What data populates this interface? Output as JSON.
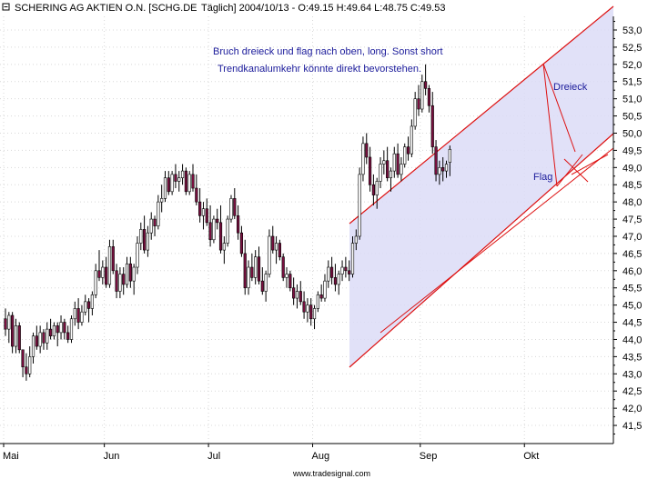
{
  "header": {
    "title": "SCHERING AG AKTIEN O.N. [SCHG.DE",
    "info": "Täglich] 2004/10/13 - O:49.15 H:49.64 L:48.75 C:49.53"
  },
  "footer": {
    "source": "www.tradesignal.com"
  },
  "colors": {
    "up": "#ffffff",
    "down": "#7a1040",
    "wick": "#000000",
    "channel_fill": "#dcdcf7",
    "channel_line": "#dd1111",
    "annotation": "#1a1a9a",
    "grid": "#d8d8d8"
  },
  "annotations": {
    "note1": "Bruch dreieck und flag nach oben, long. Sonst short",
    "note2": "Trendkanalumkehr könnte direkt bevorstehen.",
    "triangle": "Dreieck",
    "flag": "Flag"
  },
  "chart_data": {
    "type": "candlestick",
    "title": "SCHERING AG AKTIEN O.N. [SCHG.DE Täglich]",
    "ylim": [
      41.0,
      53.5
    ],
    "y_ticks": [
      "53,0",
      "52,5",
      "52,0",
      "51,5",
      "51,0",
      "50,5",
      "50,0",
      "49,5",
      "49,0",
      "48,5",
      "48,0",
      "47,5",
      "47,0",
      "46,5",
      "46,0",
      "45,5",
      "45,0",
      "44,5",
      "44,0",
      "43,5",
      "43,0",
      "42,5",
      "42,0",
      "41,5"
    ],
    "y_tick_values": [
      53.0,
      52.5,
      52.0,
      51.5,
      51.0,
      50.5,
      50.0,
      49.5,
      49.0,
      48.5,
      48.0,
      47.5,
      47.0,
      46.5,
      46.0,
      45.5,
      45.0,
      44.5,
      44.0,
      43.5,
      43.0,
      42.5,
      42.0,
      41.5
    ],
    "months": [
      {
        "label": "Mai",
        "index": 0
      },
      {
        "label": "Jun",
        "index": 29
      },
      {
        "label": "Jul",
        "index": 59
      },
      {
        "label": "Aug",
        "index": 89
      },
      {
        "label": "Sep",
        "index": 120
      },
      {
        "label": "Okt",
        "index": 150
      }
    ],
    "last_bar": {
      "date": "2004/10/13",
      "open": 49.15,
      "high": 49.64,
      "low": 48.75,
      "close": 49.53
    },
    "candles": [
      [
        44.6,
        44.9,
        44.1,
        44.3
      ],
      [
        44.3,
        44.8,
        43.9,
        44.7
      ],
      [
        44.7,
        44.8,
        43.6,
        43.8
      ],
      [
        43.8,
        44.6,
        43.6,
        44.4
      ],
      [
        44.4,
        44.5,
        43.6,
        43.7
      ],
      [
        43.7,
        43.7,
        42.9,
        43.2
      ],
      [
        43.2,
        43.6,
        42.8,
        43.0
      ],
      [
        43.0,
        43.8,
        42.9,
        43.5
      ],
      [
        43.5,
        44.2,
        43.3,
        44.1
      ],
      [
        44.1,
        44.4,
        43.7,
        43.8
      ],
      [
        43.8,
        44.4,
        43.6,
        44.2
      ],
      [
        44.2,
        44.3,
        43.7,
        43.9
      ],
      [
        43.9,
        44.5,
        43.7,
        44.3
      ],
      [
        44.3,
        44.6,
        44.0,
        44.1
      ],
      [
        44.1,
        44.5,
        44.0,
        44.4
      ],
      [
        44.4,
        44.5,
        43.8,
        44.2
      ],
      [
        44.2,
        44.7,
        44.0,
        44.5
      ],
      [
        44.5,
        44.6,
        44.0,
        44.2
      ],
      [
        44.2,
        44.4,
        43.9,
        44.0
      ],
      [
        44.0,
        44.7,
        43.9,
        44.6
      ],
      [
        44.6,
        45.1,
        44.4,
        44.9
      ],
      [
        44.9,
        45.2,
        44.3,
        44.5
      ],
      [
        44.5,
        45.0,
        44.4,
        44.8
      ],
      [
        44.8,
        45.3,
        44.7,
        45.1
      ],
      [
        45.1,
        45.2,
        44.5,
        44.9
      ],
      [
        44.9,
        45.4,
        44.7,
        45.3
      ],
      [
        45.3,
        46.2,
        45.2,
        46.0
      ],
      [
        46.0,
        46.6,
        45.7,
        45.8
      ],
      [
        45.8,
        46.3,
        45.6,
        46.1
      ],
      [
        46.1,
        46.4,
        45.5,
        45.6
      ],
      [
        45.6,
        46.9,
        45.5,
        46.7
      ],
      [
        46.7,
        46.9,
        45.9,
        46.0
      ],
      [
        46.0,
        46.2,
        45.2,
        45.4
      ],
      [
        45.4,
        46.1,
        45.2,
        45.9
      ],
      [
        45.9,
        46.1,
        45.3,
        45.6
      ],
      [
        45.6,
        46.4,
        45.5,
        46.2
      ],
      [
        46.2,
        46.4,
        45.5,
        45.7
      ],
      [
        45.7,
        46.2,
        45.3,
        46.1
      ],
      [
        46.1,
        47.0,
        45.9,
        46.8
      ],
      [
        46.8,
        47.4,
        46.6,
        47.2
      ],
      [
        47.2,
        47.6,
        46.5,
        46.6
      ],
      [
        46.6,
        47.3,
        46.4,
        47.1
      ],
      [
        47.1,
        47.7,
        46.9,
        47.5
      ],
      [
        47.5,
        47.6,
        47.0,
        47.3
      ],
      [
        47.3,
        48.2,
        47.2,
        48.0
      ],
      [
        48.0,
        48.5,
        47.7,
        48.1
      ],
      [
        48.1,
        48.9,
        48.0,
        48.7
      ],
      [
        48.7,
        48.9,
        48.2,
        48.3
      ],
      [
        48.3,
        48.9,
        48.2,
        48.8
      ],
      [
        48.8,
        49.1,
        48.4,
        48.6
      ],
      [
        48.6,
        48.9,
        48.3,
        48.7
      ],
      [
        48.7,
        49.1,
        48.5,
        48.9
      ],
      [
        48.9,
        49.0,
        48.2,
        48.3
      ],
      [
        48.3,
        48.9,
        48.2,
        48.8
      ],
      [
        48.8,
        49.1,
        48.3,
        48.4
      ],
      [
        48.4,
        48.8,
        47.9,
        48.0
      ],
      [
        48.0,
        48.4,
        47.4,
        47.6
      ],
      [
        47.6,
        48.0,
        47.2,
        47.8
      ],
      [
        47.8,
        48.1,
        47.3,
        47.4
      ],
      [
        47.4,
        47.9,
        46.7,
        46.9
      ],
      [
        46.9,
        47.6,
        46.8,
        47.5
      ],
      [
        47.5,
        47.8,
        47.2,
        47.4
      ],
      [
        47.4,
        47.9,
        46.5,
        46.6
      ],
      [
        46.6,
        47.0,
        46.2,
        46.8
      ],
      [
        46.8,
        47.6,
        46.7,
        47.5
      ],
      [
        47.5,
        48.2,
        47.4,
        48.1
      ],
      [
        48.1,
        48.4,
        47.5,
        47.6
      ],
      [
        47.6,
        47.9,
        46.9,
        47.1
      ],
      [
        47.1,
        47.3,
        46.4,
        46.5
      ],
      [
        46.5,
        46.9,
        45.3,
        45.5
      ],
      [
        45.5,
        46.3,
        45.3,
        46.1
      ],
      [
        46.1,
        46.5,
        45.7,
        45.8
      ],
      [
        45.8,
        46.6,
        45.6,
        46.4
      ],
      [
        46.4,
        46.7,
        45.6,
        45.7
      ],
      [
        45.7,
        46.1,
        45.3,
        45.4
      ],
      [
        45.4,
        46.0,
        45.1,
        45.9
      ],
      [
        45.9,
        47.2,
        45.8,
        47.0
      ],
      [
        47.0,
        47.3,
        46.5,
        46.6
      ],
      [
        46.6,
        47.0,
        46.2,
        46.8
      ],
      [
        46.8,
        46.9,
        46.3,
        46.4
      ],
      [
        46.4,
        46.5,
        45.7,
        45.8
      ],
      [
        45.8,
        46.1,
        45.5,
        45.9
      ],
      [
        45.9,
        46.0,
        45.4,
        45.5
      ],
      [
        45.5,
        45.8,
        45.0,
        45.2
      ],
      [
        45.2,
        45.6,
        44.9,
        45.4
      ],
      [
        45.4,
        45.7,
        45.0,
        45.1
      ],
      [
        45.1,
        45.4,
        44.6,
        44.8
      ],
      [
        44.8,
        45.2,
        44.5,
        45.0
      ],
      [
        45.0,
        45.2,
        44.4,
        44.6
      ],
      [
        44.6,
        45.0,
        44.3,
        44.9
      ],
      [
        44.9,
        45.4,
        44.8,
        45.3
      ],
      [
        45.3,
        45.6,
        45.1,
        45.2
      ],
      [
        45.2,
        45.9,
        45.1,
        45.7
      ],
      [
        45.7,
        46.3,
        45.5,
        46.1
      ],
      [
        46.1,
        46.4,
        45.6,
        45.8
      ],
      [
        45.8,
        46.2,
        45.4,
        45.6
      ],
      [
        45.6,
        46.0,
        45.3,
        45.9
      ],
      [
        45.9,
        46.3,
        45.7,
        46.1
      ],
      [
        46.1,
        46.4,
        45.8,
        46.0
      ],
      [
        46.0,
        46.3,
        45.7,
        45.9
      ],
      [
        45.9,
        47.0,
        45.8,
        46.8
      ],
      [
        46.8,
        47.2,
        46.6,
        47.0
      ],
      [
        47.0,
        49.0,
        46.9,
        48.8
      ],
      [
        48.8,
        49.9,
        48.6,
        49.7
      ],
      [
        49.7,
        50.0,
        49.1,
        49.3
      ],
      [
        49.3,
        49.6,
        48.3,
        48.5
      ],
      [
        48.5,
        48.8,
        47.9,
        48.2
      ],
      [
        48.2,
        48.7,
        47.8,
        48.6
      ],
      [
        48.6,
        49.3,
        48.4,
        49.1
      ],
      [
        49.1,
        49.5,
        48.8,
        49.2
      ],
      [
        49.2,
        49.6,
        48.6,
        48.7
      ],
      [
        48.7,
        49.0,
        48.3,
        48.9
      ],
      [
        48.9,
        49.6,
        48.7,
        49.4
      ],
      [
        49.4,
        49.7,
        48.7,
        48.8
      ],
      [
        48.8,
        49.3,
        48.6,
        49.1
      ],
      [
        49.1,
        49.7,
        49.0,
        49.6
      ],
      [
        49.6,
        49.9,
        49.2,
        49.4
      ],
      [
        49.4,
        50.4,
        49.3,
        50.2
      ],
      [
        50.2,
        51.2,
        50.1,
        51.0
      ],
      [
        51.0,
        51.4,
        50.5,
        50.7
      ],
      [
        50.7,
        51.7,
        50.6,
        51.5
      ],
      [
        51.5,
        52.0,
        51.1,
        51.3
      ],
      [
        51.3,
        51.4,
        50.6,
        50.8
      ],
      [
        50.8,
        51.2,
        49.4,
        49.6
      ],
      [
        49.6,
        49.8,
        48.6,
        48.8
      ],
      [
        48.8,
        49.2,
        48.5,
        49.0
      ],
      [
        49.0,
        49.3,
        48.6,
        48.9
      ],
      [
        48.9,
        49.2,
        48.7,
        49.1
      ],
      [
        49.15,
        49.64,
        48.75,
        49.53
      ]
    ]
  }
}
